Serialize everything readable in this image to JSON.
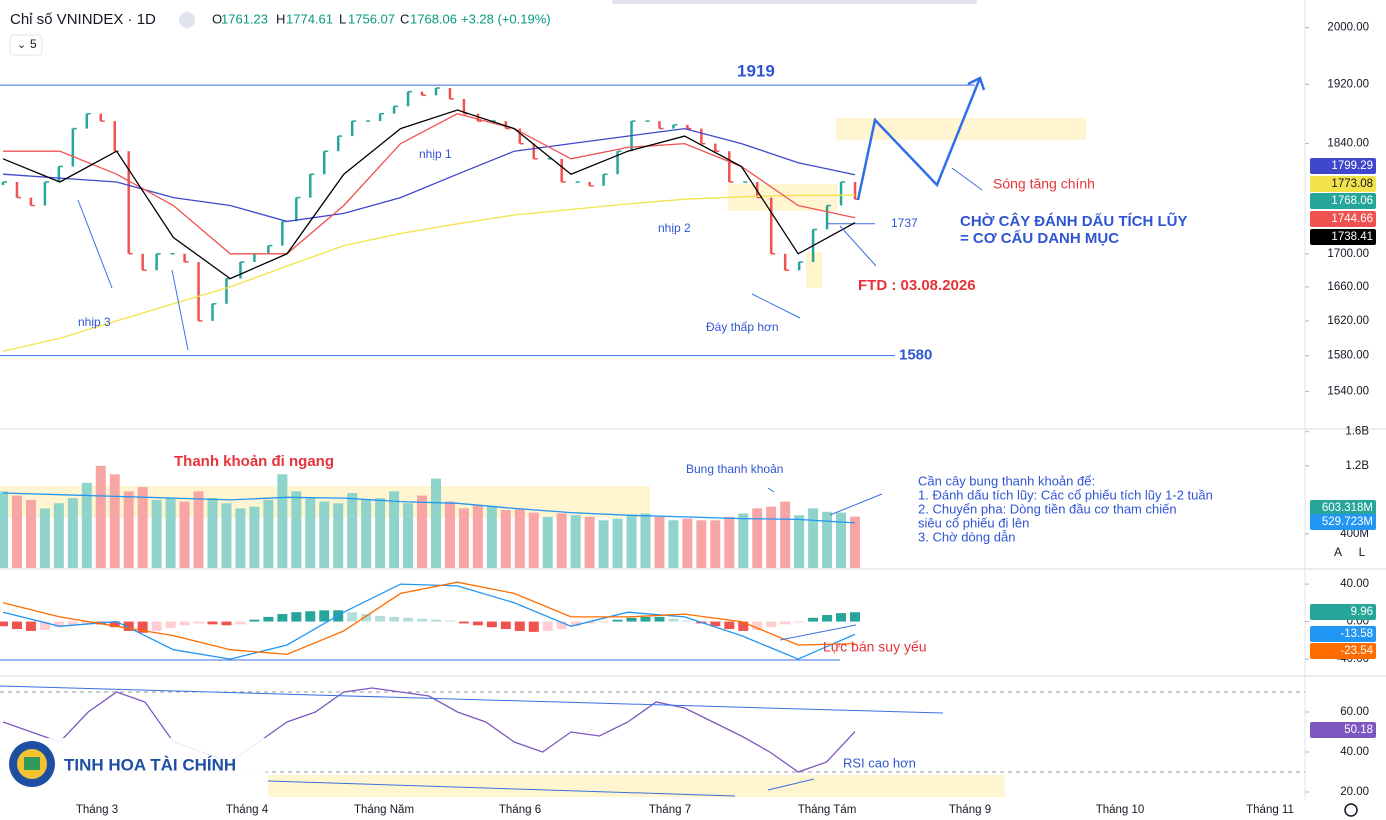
{
  "header": {
    "title": "Chỉ số VNINDEX · 1D",
    "ohlc": [
      {
        "label": "O",
        "value": 1761.23
      },
      {
        "label": "H",
        "value": 1774.61
      },
      {
        "label": "L",
        "value": 1756.07
      },
      {
        "label": "C",
        "value": 1768.06
      }
    ],
    "change": "+3.28 (+0.19%)",
    "indicators": "5"
  },
  "chart_data": [
    {
      "type": "line",
      "pane": "price",
      "log_scale": true,
      "ylim": [
        1500,
        2040
      ],
      "yticks": [
        {
          "value": 2000,
          "label": "2000.00"
        },
        {
          "value": 1920,
          "label": "1920.00"
        },
        {
          "value": 1840,
          "label": "1840.00"
        },
        {
          "value": 1700,
          "label": "1700.00"
        },
        {
          "value": 1660,
          "label": "1660.00"
        },
        {
          "value": 1620,
          "label": "1620.00"
        },
        {
          "value": 1580,
          "label": "1580.00"
        },
        {
          "value": 1540,
          "label": "1540.00"
        }
      ],
      "up_color": "#26a69a",
      "down_color": "#ef5350",
      "series": [
        {
          "color": "#26a69a",
          "style": "price",
          "values": [
            1790,
            1770,
            1760,
            1790,
            1810,
            1860,
            1880,
            1870,
            1830,
            1700,
            1680,
            1700,
            1700,
            1690,
            1620,
            1640,
            1670,
            1690,
            1700,
            1710,
            1740,
            1770,
            1800,
            1830,
            1850,
            1870,
            1870,
            1880,
            1890,
            1910,
            1905,
            1915,
            1900,
            1880,
            1870,
            1870,
            1860,
            1840,
            1820,
            1820,
            1790,
            1790,
            1785,
            1800,
            1830,
            1870,
            1870,
            1860,
            1865,
            1860,
            1840,
            1830,
            1790,
            1790,
            1770,
            1700,
            1680,
            1690,
            1730,
            1760,
            1790,
            1768.06
          ]
        },
        {
          "color": "#3f48cc",
          "values": [
            1800,
            1795,
            1790,
            1770,
            1760,
            1740,
            1750,
            1770,
            1800,
            1830,
            1840,
            1850,
            1860,
            1840,
            1815,
            1799.29
          ]
        },
        {
          "color": "#f2e34b",
          "values": [
            1585,
            1600,
            1620,
            1640,
            1660,
            1685,
            1710,
            1725,
            1737,
            1748,
            1755,
            1762,
            1768,
            1771,
            1773,
            1773.08
          ]
        },
        {
          "color": "#ef5350",
          "values": [
            1830,
            1830,
            1800,
            1760,
            1700,
            1700,
            1760,
            1840,
            1880,
            1860,
            1820,
            1835,
            1840,
            1810,
            1760,
            1744.66
          ]
        },
        {
          "color": "#000000",
          "values": [
            1820,
            1790,
            1830,
            1720,
            1670,
            1700,
            1800,
            1860,
            1885,
            1860,
            1800,
            1830,
            1850,
            1810,
            1700,
            1738.41
          ]
        }
      ],
      "levels": [
        1919,
        1580,
        1737
      ]
    },
    {
      "type": "bar",
      "pane": "volume",
      "ylim": [
        0,
        1620
      ],
      "yticks": [
        {
          "value": 1600,
          "label": "1.6B"
        },
        {
          "value": 1200,
          "label": "1.2B"
        },
        {
          "value": 400,
          "label": "400M"
        }
      ],
      "series": [
        {
          "color": "#26a69a",
          "values": [
            900,
            850,
            800,
            700,
            760,
            820,
            1000,
            1200,
            1100,
            900,
            950,
            800,
            820,
            780,
            900,
            820,
            760,
            700,
            720,
            800,
            1100,
            900,
            820,
            780,
            760,
            880,
            800,
            820,
            900,
            760,
            850,
            1050,
            780,
            700,
            740,
            720,
            680,
            700,
            650,
            600,
            640,
            620,
            600,
            560,
            580,
            620,
            640,
            600,
            560,
            580,
            560,
            560,
            600,
            640,
            700,
            720,
            780,
            620,
            700,
            660,
            650,
            603.318
          ],
          "value_labels": {
            "61": "603.318M"
          }
        },
        {
          "color": "#2196f3",
          "values": [
            880,
            860,
            840,
            820,
            800,
            830,
            820,
            780,
            760,
            700,
            650,
            620,
            600,
            580,
            570,
            529.723
          ],
          "value_labels": {
            "15": "529.723M"
          }
        }
      ]
    },
    {
      "type": "bar",
      "pane": "macd",
      "ylim": [
        -57,
        55
      ],
      "yticks": [
        {
          "value": 40,
          "label": "40.00"
        },
        {
          "value": 0,
          "label": "0.00"
        },
        {
          "value": -40,
          "label": "-40.00"
        }
      ],
      "series": [
        {
          "color": "#26a69a",
          "values": [
            -5,
            -8,
            -10,
            -9,
            -6,
            -4,
            -2,
            -3,
            -6,
            -10,
            -12,
            -10,
            -7,
            -4,
            -2,
            -3,
            -4,
            -3,
            2,
            5,
            8,
            10,
            11,
            12,
            12,
            10,
            8,
            6,
            5,
            4,
            3,
            2,
            1,
            -2,
            -4,
            -6,
            -8,
            -10,
            -11,
            -10,
            -8,
            -5,
            -2,
            -1,
            2,
            4,
            5,
            5,
            3,
            1,
            -2,
            -5,
            -8,
            -10,
            -9,
            -6,
            -3,
            -1,
            4,
            7,
            9,
            9.96
          ]
        },
        {
          "color": "#2196f3",
          "values": [
            10,
            -5,
            0,
            -30,
            -40,
            -25,
            10,
            40,
            38,
            20,
            -5,
            10,
            5,
            -15,
            -40,
            -13.58
          ]
        },
        {
          "color": "#ff6d00",
          "values": [
            20,
            5,
            -5,
            -15,
            -30,
            -35,
            -10,
            30,
            42,
            30,
            5,
            5,
            8,
            0,
            -25,
            -23.54
          ]
        }
      ]
    },
    {
      "type": "line",
      "pane": "rsi",
      "ylim": [
        16,
        77
      ],
      "yticks": [
        {
          "value": 60,
          "label": "60.00"
        },
        {
          "value": 40,
          "label": "40.00"
        },
        {
          "value": 20,
          "label": "20.00"
        }
      ],
      "bands": [
        70,
        30
      ],
      "series": [
        {
          "color": "#7e57c2",
          "values": [
            55,
            50,
            45,
            60,
            70,
            65,
            45,
            40,
            35,
            45,
            55,
            60,
            70,
            72,
            70,
            68,
            60,
            55,
            45,
            40,
            50,
            48,
            55,
            65,
            62,
            55,
            48,
            40,
            30,
            35,
            50.18
          ]
        }
      ]
    }
  ],
  "x_labels": [
    "Tháng 3",
    "Tháng 4",
    "Tháng Năm",
    "Tháng 6",
    "Tháng 7",
    "Tháng Tám",
    "Tháng 9",
    "Tháng 10",
    "Tháng 11"
  ],
  "annotations": [
    "nhịp 1",
    "nhịp 2",
    "nhịp 3",
    "Đáy thấp hơn",
    "FTD : 03.08.2026",
    "Sóng tăng chính",
    "CHỜ CÂY ĐÁNH DẤU TÍCH LŨY",
    "= CƠ CẤU DANH MỤC",
    "Thanh khoản đi ngang",
    "Bung thanh khoản",
    "Lực bán suy yếu",
    "RSI cao hơn"
  ],
  "notes": [
    "Cần cây bung thanh khoản để:",
    "1. Đánh dấu tích lũy: Các cổ phiếu tích lũy 1-2 tuần",
    "2. Chuyển pha: Dòng tiền đầu cơ tham chiến",
    "siêu cổ phiếu đi lên",
    "3. Chờ dòng dẫn"
  ],
  "logo": "TINH HOA TÀI CHÍNH",
  "scale_buttons": [
    "A",
    "L"
  ]
}
